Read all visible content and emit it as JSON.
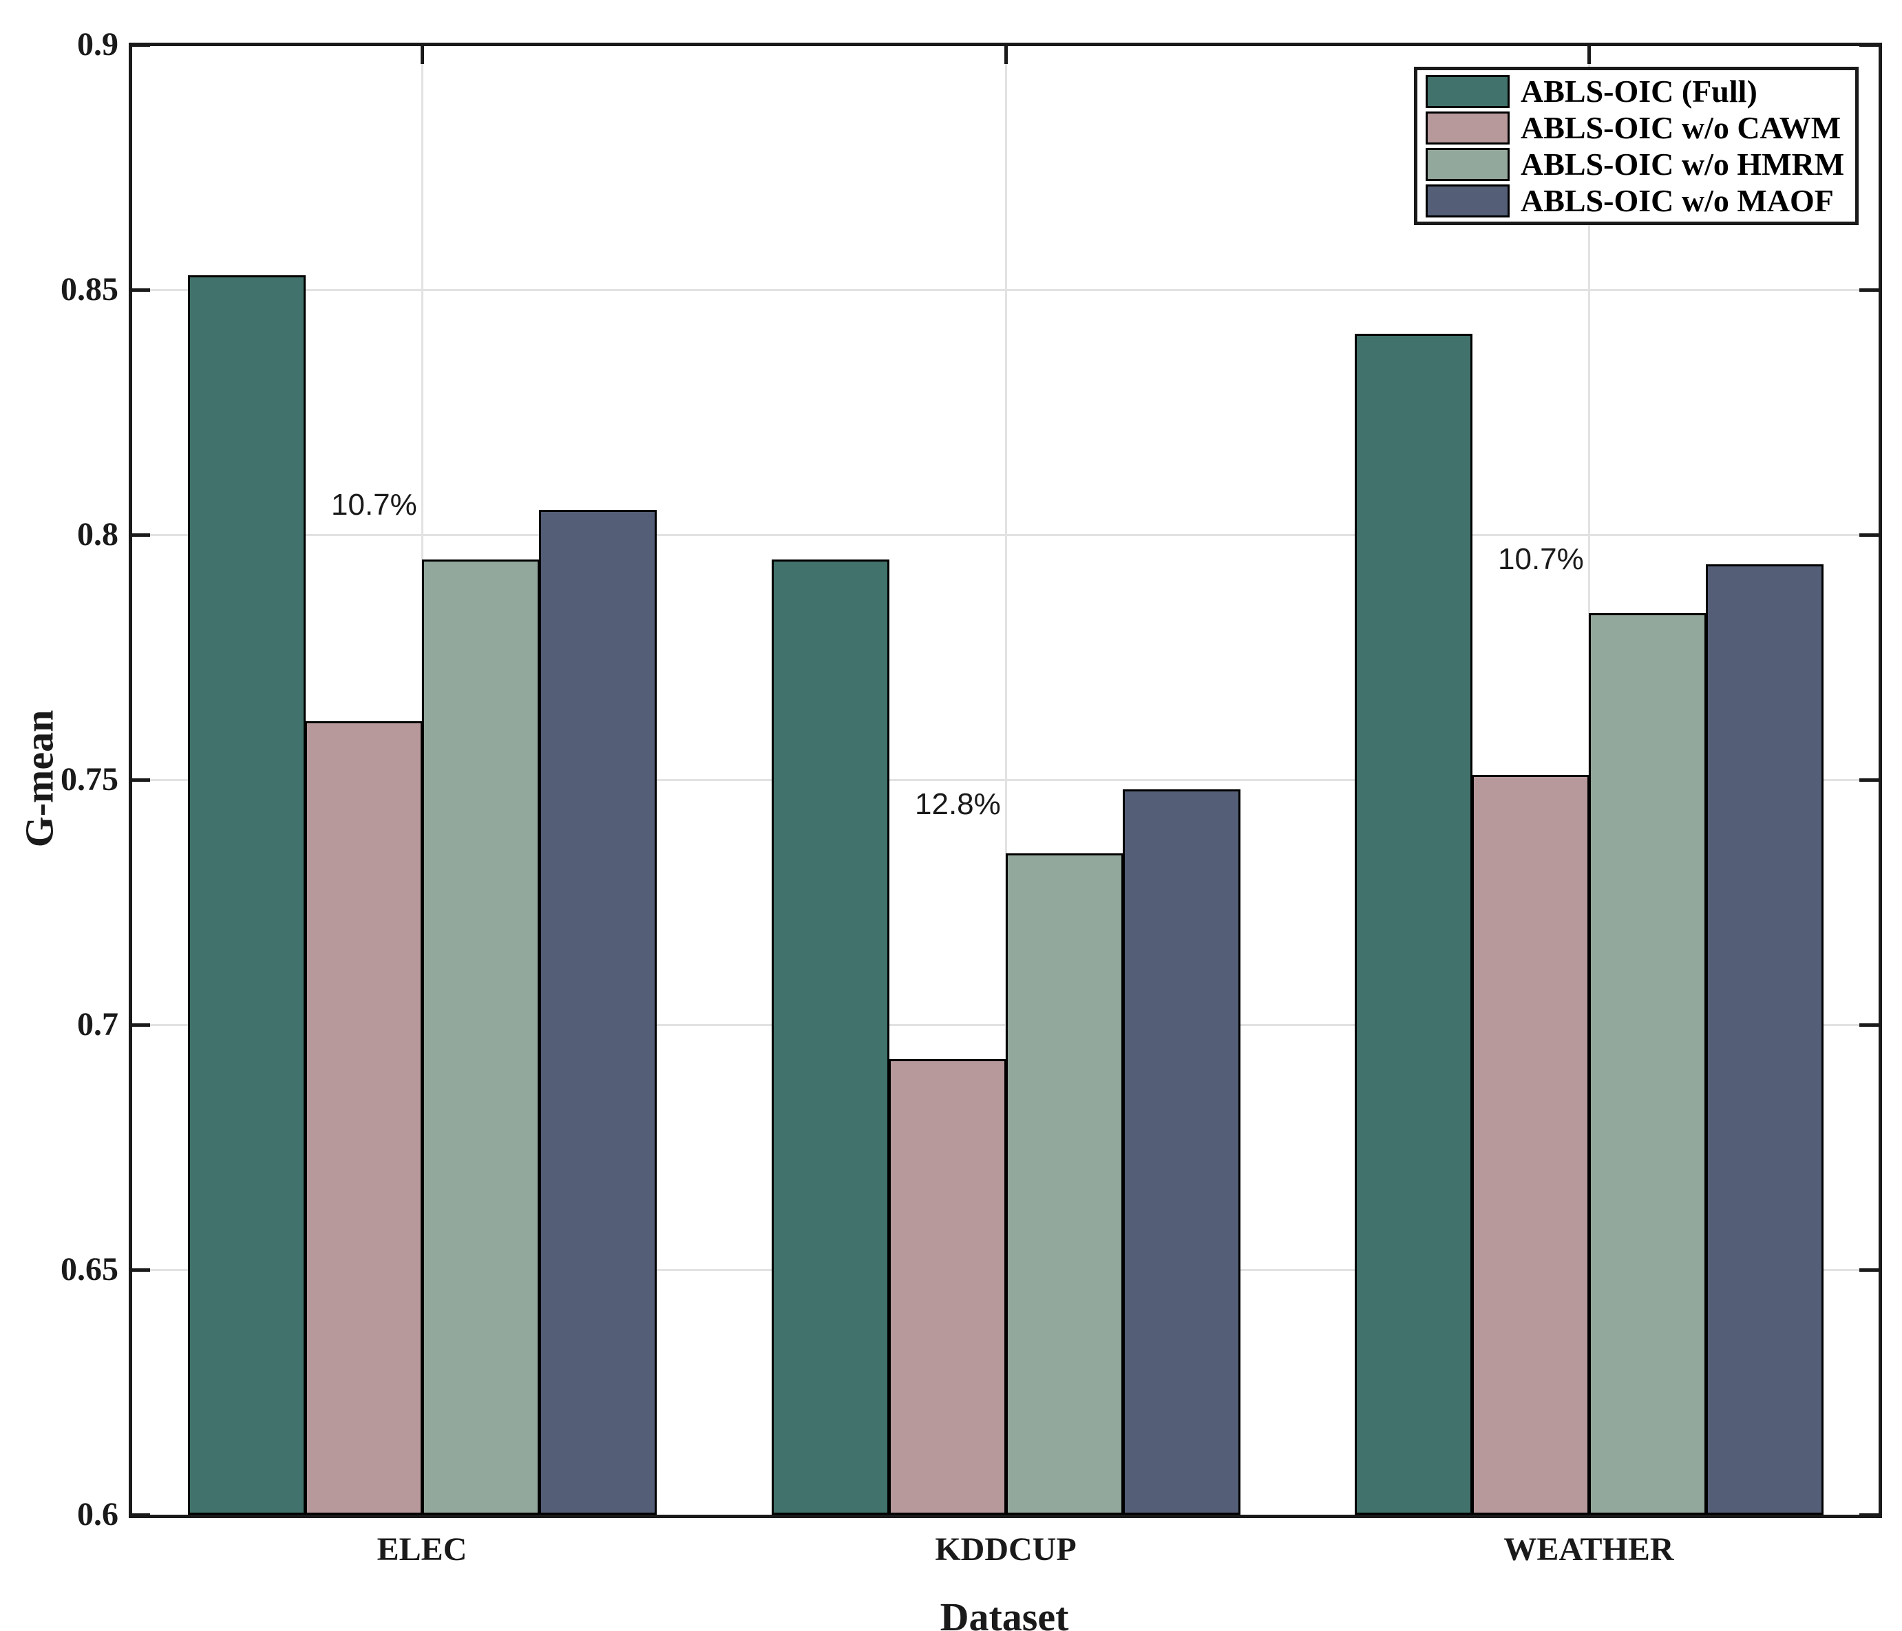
{
  "chart_data": {
    "type": "bar",
    "title": "",
    "xlabel": "Dataset",
    "ylabel": "G-mean",
    "categories": [
      "ELEC",
      "KDDCUP",
      "WEATHER"
    ],
    "series": [
      {
        "name": "ABLS-OIC (Full)",
        "color": "#41726B",
        "values": [
          0.853,
          0.795,
          0.841
        ]
      },
      {
        "name": "ABLS-OIC w/o CAWM",
        "color": "#B7999C",
        "values": [
          0.762,
          0.693,
          0.751
        ]
      },
      {
        "name": "ABLS-OIC w/o HMRM",
        "color": "#93A89C",
        "values": [
          0.795,
          0.735,
          0.784
        ]
      },
      {
        "name": "ABLS-OIC w/o MAOF",
        "color": "#545F77",
        "values": [
          0.805,
          0.748,
          0.794
        ]
      }
    ],
    "annotations": [
      {
        "text": "10.7%",
        "category_index": 0,
        "value": 0.806
      },
      {
        "text": "12.8%",
        "category_index": 1,
        "value": 0.745
      },
      {
        "text": "10.7%",
        "category_index": 2,
        "value": 0.795
      }
    ],
    "ylim": [
      0.6,
      0.9
    ],
    "yticks": [
      {
        "value": 0.9,
        "label": "0.9"
      },
      {
        "value": 0.85,
        "label": "0.85"
      },
      {
        "value": 0.8,
        "label": "0.8"
      },
      {
        "value": 0.75,
        "label": "0.75"
      },
      {
        "value": 0.7,
        "label": "0.7"
      },
      {
        "value": 0.65,
        "label": "0.65"
      },
      {
        "value": 0.6,
        "label": "0.6"
      }
    ],
    "grid": "on",
    "legend_position": "top-right",
    "colors": {
      "grid": "#E2E2E2",
      "frame": "#1A1A1A",
      "bar_edge": "#000000",
      "background": "#FFFFFF"
    }
  }
}
